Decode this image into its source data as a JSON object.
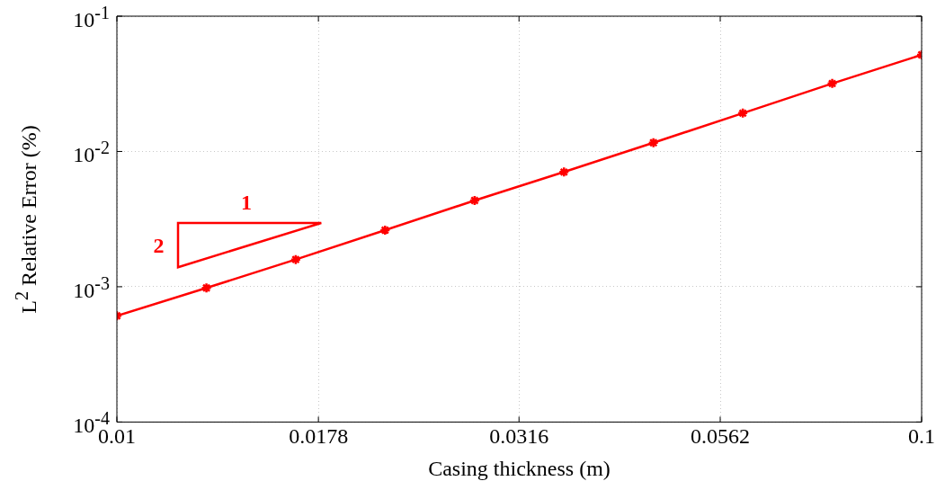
{
  "chart_data": {
    "type": "line",
    "xlabel": "Casing thickness (m)",
    "ylabel": "L$^{2}$ Relative Error (%)",
    "x": [
      0.01,
      0.01292,
      0.01668,
      0.02154,
      0.02783,
      0.03594,
      0.04642,
      0.05995,
      0.07743,
      0.1
    ],
    "series": [
      {
        "color": "#ff0000",
        "values": [
          0.00061,
          0.00098,
          0.00159,
          0.00262,
          0.00434,
          0.00705,
          0.0116,
          0.0192,
          0.0318,
          0.0518
        ]
      }
    ],
    "log": "xy",
    "xlim": [
      0.01,
      0.1
    ],
    "ylim": [
      0.0001,
      0.1
    ],
    "xticks": [
      0.01,
      0.0178,
      0.0316,
      0.0562,
      0.1
    ],
    "yticks": [
      {
        "value": 0.0001,
        "label": "10$^{-4}$"
      },
      {
        "value": 0.001,
        "label": "10$^{-3}$"
      },
      {
        "value": 0.01,
        "label": "10$^{-2}$"
      },
      {
        "value": 0.1,
        "label": "10$^{-1}$"
      }
    ],
    "grid": true,
    "marker": "cross",
    "line_style": "solid",
    "legend": false,
    "annotations": [
      "1",
      "2"
    ]
  }
}
